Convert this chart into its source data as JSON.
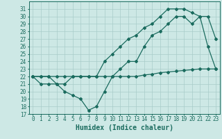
{
  "xlabel": "Humidex (Indice chaleur)",
  "background_color": "#cde8e5",
  "grid_color": "#a8ccc9",
  "line_color": "#1a6b5e",
  "xlim": [
    -0.5,
    23.5
  ],
  "ylim": [
    17,
    32
  ],
  "yticks": [
    17,
    18,
    19,
    20,
    21,
    22,
    23,
    24,
    25,
    26,
    27,
    28,
    29,
    30,
    31
  ],
  "xticks": [
    0,
    1,
    2,
    3,
    4,
    5,
    6,
    7,
    8,
    9,
    10,
    11,
    12,
    13,
    14,
    15,
    16,
    17,
    18,
    19,
    20,
    21,
    22,
    23
  ],
  "line1_x": [
    0,
    1,
    2,
    3,
    4,
    5,
    6,
    7,
    8,
    9,
    10,
    11,
    12,
    13,
    14,
    15,
    16,
    17,
    18,
    19,
    20,
    21,
    22,
    23
  ],
  "line1_y": [
    22.0,
    22.0,
    22.0,
    22.0,
    22.0,
    22.0,
    22.0,
    22.0,
    22.0,
    22.0,
    22.0,
    22.0,
    22.0,
    22.0,
    22.2,
    22.3,
    22.5,
    22.6,
    22.7,
    22.8,
    22.9,
    23.0,
    23.0,
    23.0
  ],
  "line2_x": [
    0,
    1,
    2,
    3,
    4,
    5,
    6,
    7,
    8,
    9,
    10,
    11,
    12,
    13,
    14,
    15,
    16,
    17,
    18,
    19,
    20,
    21,
    22,
    23
  ],
  "line2_y": [
    22,
    21,
    21,
    21,
    20,
    19.5,
    19,
    17.5,
    18,
    20,
    22,
    23,
    24,
    24,
    26,
    27.5,
    28,
    29,
    30,
    30,
    29,
    30,
    26,
    23
  ],
  "line3_x": [
    0,
    1,
    2,
    3,
    4,
    5,
    6,
    7,
    8,
    9,
    10,
    11,
    12,
    13,
    14,
    15,
    16,
    17,
    18,
    19,
    20,
    21,
    22,
    23
  ],
  "line3_y": [
    22,
    22,
    22,
    21,
    21,
    22,
    22,
    22,
    22,
    24,
    25,
    26,
    27,
    27.5,
    28.5,
    29,
    30,
    31,
    31,
    31,
    30.5,
    30,
    30,
    27
  ],
  "marker": "D",
  "marker_size": 2.0,
  "linewidth": 0.9,
  "tick_fontsize": 5.5,
  "xlabel_fontsize": 7
}
